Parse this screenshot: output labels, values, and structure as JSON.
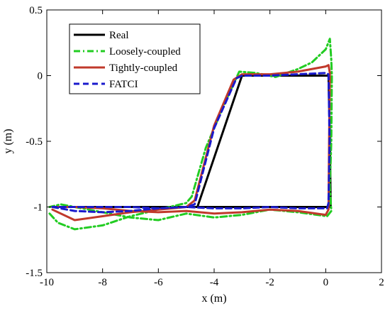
{
  "chart_data": {
    "type": "line",
    "title": "",
    "xlabel": "x (m)",
    "ylabel": "y (m)",
    "xlim": [
      -10,
      2
    ],
    "ylim": [
      -1.5,
      0.5
    ],
    "xticks": [
      -10,
      -8,
      -6,
      -4,
      -2,
      0,
      2
    ],
    "yticks": [
      -1.5,
      -1,
      -0.5,
      0,
      0.5
    ],
    "xtick_labels": [
      "-10",
      "-8",
      "-6",
      "-4",
      "-2",
      "0",
      "2"
    ],
    "ytick_labels": [
      "-1.5",
      "-1",
      "-0.5",
      "0",
      "0.5"
    ],
    "grid": false,
    "legend_position": "top-left",
    "series": [
      {
        "name": "Real",
        "color": "#000000",
        "dash": "solid",
        "x": [
          -9.8,
          -4.6,
          -3.0,
          0.1,
          0.15,
          0.18,
          -9.8
        ],
        "y": [
          -1.0,
          -1.0,
          0.0,
          0.0,
          -0.5,
          -1.0,
          -1.0
        ]
      },
      {
        "name": "Loosely-coupled",
        "color": "#22cc22",
        "dash": "dashdot",
        "x": [
          -9.9,
          -9.6,
          -9.0,
          -8.0,
          -7.0,
          -6.0,
          -5.0,
          -4.8,
          -4.3,
          -3.6,
          -3.1,
          -2.5,
          -1.8,
          -1.0,
          -0.5,
          0.0,
          0.15,
          0.2,
          0.22,
          0.2,
          0.15,
          0.2,
          0.05,
          -1.0,
          -2.0,
          -3.0,
          -4.0,
          -5.0,
          -6.0,
          -7.0,
          -8.0,
          -9.0,
          -9.5,
          -9.9
        ],
        "y": [
          -1.05,
          -1.12,
          -1.17,
          -1.14,
          -1.07,
          -1.02,
          -0.97,
          -0.92,
          -0.55,
          -0.2,
          0.03,
          0.02,
          -0.01,
          0.05,
          0.1,
          0.2,
          0.28,
          0.12,
          0.0,
          -0.5,
          -0.85,
          -1.03,
          -1.07,
          -1.04,
          -1.02,
          -1.06,
          -1.08,
          -1.05,
          -1.1,
          -1.08,
          -1.04,
          -1.0,
          -0.98,
          -1.0
        ]
      },
      {
        "name": "Tightly-coupled",
        "color": "#c0392b",
        "dash": "solid",
        "x": [
          -9.8,
          -9.0,
          -8.0,
          -7.0,
          -6.0,
          -5.0,
          -4.7,
          -4.0,
          -3.3,
          -3.0,
          -2.0,
          -1.0,
          0.0,
          0.1,
          0.15,
          0.12,
          0.1,
          0.0,
          -1.0,
          -2.0,
          -3.0,
          -4.0,
          -5.0,
          -6.0,
          -7.0,
          -8.0,
          -9.0,
          -9.8
        ],
        "y": [
          -1.02,
          -1.1,
          -1.07,
          -1.04,
          -1.02,
          -1.0,
          -0.95,
          -0.38,
          -0.03,
          0.01,
          0.01,
          0.03,
          0.07,
          0.08,
          0.02,
          -0.5,
          -1.02,
          -1.06,
          -1.03,
          -1.02,
          -1.04,
          -1.05,
          -1.03,
          -1.04,
          -1.03,
          -1.01,
          -1.0,
          -1.0
        ]
      },
      {
        "name": "FATCI",
        "color": "#1a1acc",
        "dash": "dash",
        "x": [
          -9.8,
          -9.0,
          -8.0,
          -7.0,
          -6.0,
          -5.0,
          -4.7,
          -4.0,
          -3.2,
          -3.0,
          -2.0,
          -1.0,
          0.0,
          0.1,
          0.14,
          0.1,
          0.05,
          -1.0,
          -2.0,
          -3.0,
          -4.0,
          -5.0,
          -6.0,
          -7.0,
          -8.0,
          -9.0,
          -9.8
        ],
        "y": [
          -1.0,
          -1.03,
          -1.04,
          -1.03,
          -1.01,
          -1.0,
          -0.98,
          -0.4,
          -0.02,
          0.0,
          0.0,
          0.01,
          0.02,
          0.01,
          -0.5,
          -0.97,
          -1.01,
          -1.01,
          -1.0,
          -1.01,
          -1.01,
          -1.0,
          -1.01,
          -1.0,
          -1.0,
          -1.0,
          -1.0
        ]
      }
    ]
  }
}
